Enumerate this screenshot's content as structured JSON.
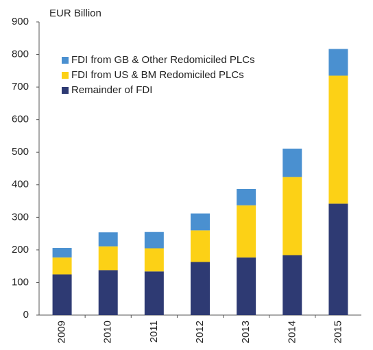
{
  "chart_data": {
    "type": "stacked_bar",
    "y_label": "EUR Billion",
    "categories": [
      "2009",
      "2010",
      "2011",
      "2012",
      "2013",
      "2014",
      "2015"
    ],
    "series": [
      {
        "name": "FDI from GB & Other Redomiciled PLCs",
        "color": "#4a90d0",
        "values": [
          29,
          43,
          50,
          52,
          50,
          87,
          82
        ]
      },
      {
        "name": "FDI from US & BM Redomiciled PLCs",
        "color": "#fcd116",
        "values": [
          52,
          73,
          71,
          97,
          160,
          240,
          393
        ]
      },
      {
        "name": "Remainder of FDI",
        "color": "#2e3a73",
        "values": [
          125,
          138,
          134,
          163,
          177,
          184,
          342
        ]
      }
    ],
    "ylim": [
      0,
      900
    ],
    "yticks": [
      0,
      100,
      200,
      300,
      400,
      500,
      600,
      700,
      800,
      900
    ],
    "legend": "upper left"
  }
}
